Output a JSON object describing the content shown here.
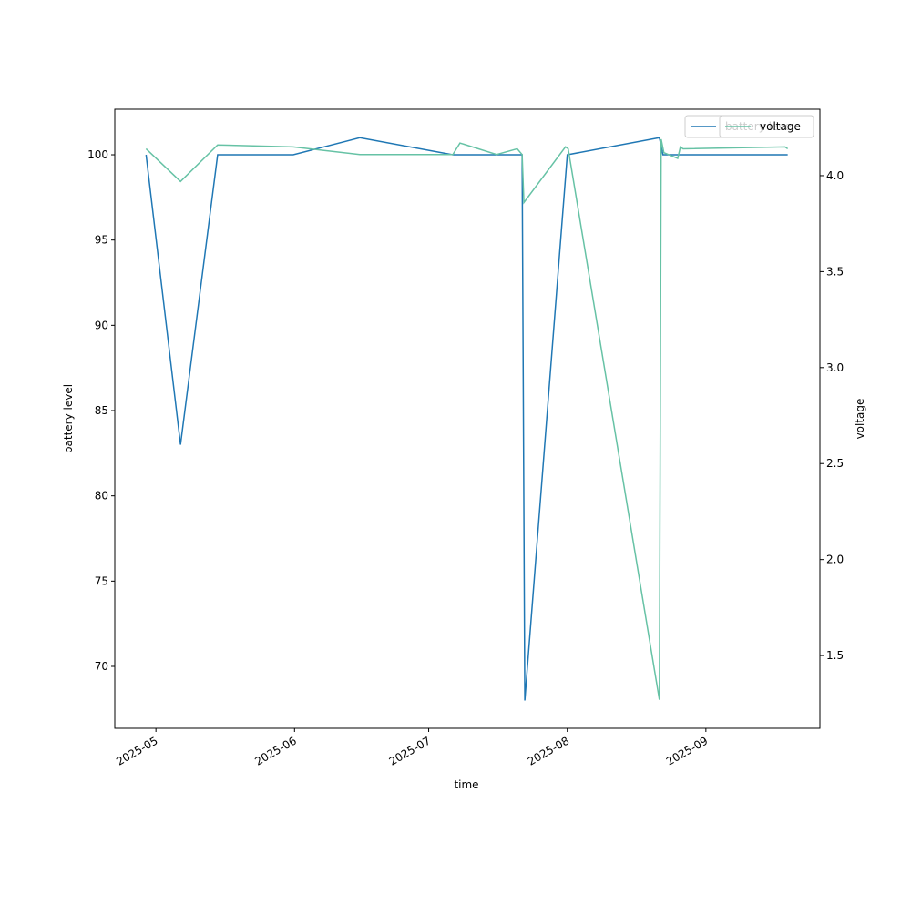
{
  "chart_data": {
    "type": "line",
    "xlabel": "time",
    "ylabel": "battery level",
    "y2label": "voltage",
    "xlim": [
      20199.8,
      20357.5
    ],
    "xticks": [
      {
        "value": 20209,
        "label": "2025-05"
      },
      {
        "value": 20240,
        "label": "2025-06"
      },
      {
        "value": 20270,
        "label": "2025-07"
      },
      {
        "value": 20301,
        "label": "2025-08"
      },
      {
        "value": 20332,
        "label": "2025-09"
      }
    ],
    "ylim": [
      66.37,
      102.67
    ],
    "yticks": [
      70,
      75,
      80,
      85,
      90,
      95,
      100
    ],
    "y2lim": [
      1.121,
      4.346
    ],
    "y2ticks": [
      1.5,
      {
        "value": 2,
        "label": "2.0"
      },
      2.5,
      {
        "value": 3,
        "label": "3.0"
      },
      3.5,
      {
        "value": 4,
        "label": "4.0"
      }
    ],
    "grid": false,
    "legend": "upper right",
    "series": [
      {
        "name": "battery level",
        "color": "#1f77b4",
        "x": [
          20206.8,
          20214.5,
          20222.8,
          20239.7,
          20254.6,
          20275.4,
          20290.9,
          20291.5,
          20301.0,
          20321.6,
          20322.4,
          20350.3
        ],
        "values": [
          100,
          83,
          100,
          100,
          101,
          100,
          100,
          68,
          100,
          101,
          100,
          100
        ]
      },
      {
        "name": "voltage",
        "color": "#66c2a5",
        "axis": "y2",
        "x": [
          20206.8,
          20214.5,
          20222.8,
          20239.7,
          20254.6,
          20275.4,
          20277.0,
          20285.2,
          20289.8,
          20290.9,
          20291.3,
          20300.6,
          20301.2,
          20321.6,
          20322.0,
          20322.6,
          20325.7,
          20326.3,
          20326.9,
          20349.7,
          20350.3
        ],
        "values": [
          4.14,
          3.97,
          4.16,
          4.15,
          4.11,
          4.11,
          4.17,
          4.11,
          4.14,
          4.11,
          3.86,
          4.15,
          4.14,
          1.27,
          4.19,
          4.12,
          4.09,
          4.15,
          4.14,
          4.15,
          4.14
        ]
      }
    ]
  }
}
